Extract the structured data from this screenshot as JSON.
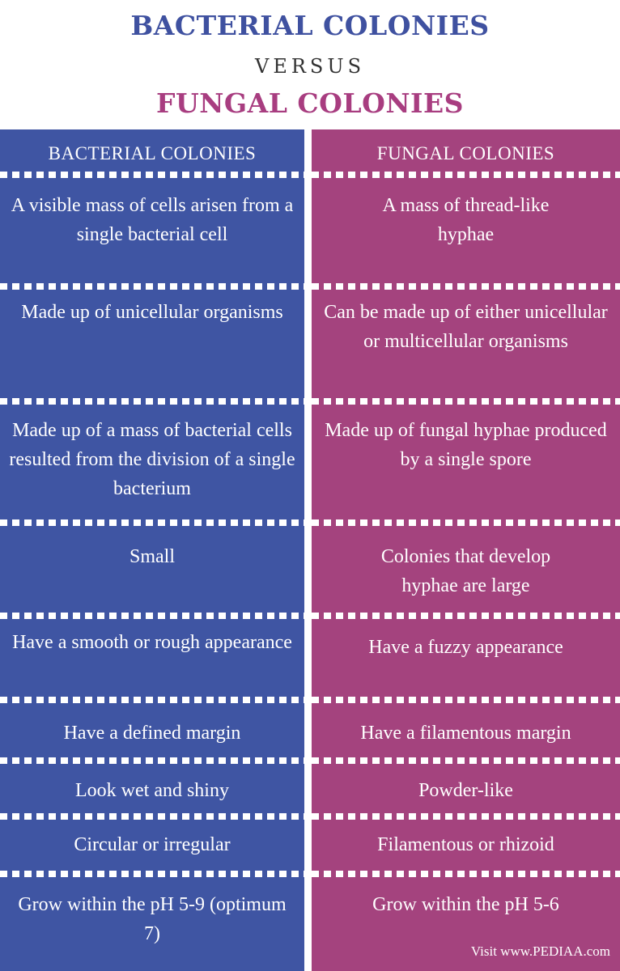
{
  "title": {
    "line1": "BACTERIAL COLONIES",
    "versus": "VERSUS",
    "line2": "FUNGAL COLONIES"
  },
  "columns": {
    "left_header": "BACTERIAL COLONIES",
    "right_header": "FUNGAL COLONIES"
  },
  "rows": [
    {
      "left": "A visible mass of cells arisen from a single bacterial cell",
      "right": "A mass of thread-like hyphae"
    },
    {
      "left": "Made up of unicellular organisms",
      "right": "Can be made up of either unicellular or multicellular organisms"
    },
    {
      "left": "Made up of a mass of bacterial cells resulted from the division of a single bacterium",
      "right": "Made up of fungal hyphae produced by a single spore"
    },
    {
      "left": "Small",
      "right": "Colonies that develop hyphae are large"
    },
    {
      "left": "Have a smooth or rough appearance",
      "right": "Have a fuzzy appearance"
    },
    {
      "left": "Have a defined margin",
      "right": "Have a filamentous margin"
    },
    {
      "left": "Look wet and shiny",
      "right": "Powder-like"
    },
    {
      "left": "Circular or irregular",
      "right": "Filamentous or rhizoid"
    },
    {
      "left": "Grow within the pH 5-9 (optimum 7)",
      "right": "Grow within the pH 5-6"
    }
  ],
  "footer": "Visit www.PEDIAA.com",
  "colors": {
    "left_bg": "#3f55a3",
    "right_bg": "#a4437e",
    "title_blue": "#3f51a0",
    "title_pink": "#a83d80"
  }
}
